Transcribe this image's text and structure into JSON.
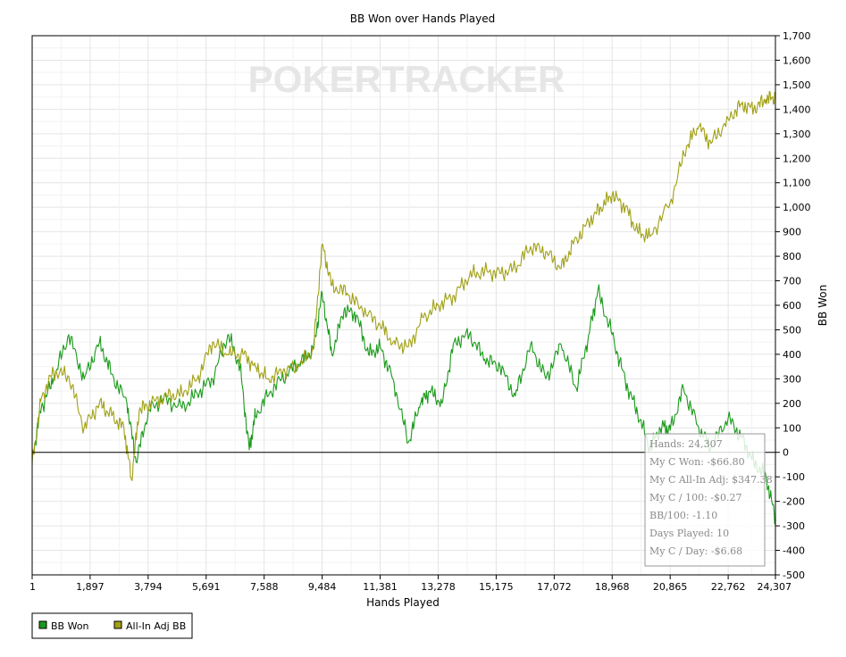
{
  "chart_data": {
    "type": "line",
    "title": "BB Won over Hands Played",
    "xlabel": "Hands Played",
    "ylabel": "BB Won",
    "xlim": [
      1,
      24307
    ],
    "ylim": [
      -500,
      1700
    ],
    "x_ticks": [
      "1",
      "1,897",
      "3,794",
      "5,691",
      "7,588",
      "9,484",
      "11,381",
      "13,278",
      "15,175",
      "17,072",
      "18,968",
      "20,865",
      "22,762",
      "24,307"
    ],
    "y_ticks": [
      "-500",
      "-400",
      "-300",
      "-200",
      "-100",
      "0",
      "100",
      "200",
      "300",
      "400",
      "500",
      "600",
      "700",
      "800",
      "900",
      "1,000",
      "1,100",
      "1,200",
      "1,300",
      "1,400",
      "1,500",
      "1,600",
      "1,700"
    ],
    "grid": true,
    "legend_position": "bottom-left",
    "watermark": "POKERTRACKER",
    "series": [
      {
        "name": "BB Won",
        "color": "#1a9a1a",
        "x": [
          1,
          300,
          700,
          1200,
          1700,
          2200,
          2600,
          3100,
          3400,
          3800,
          4300,
          4900,
          5400,
          5900,
          6400,
          6800,
          7100,
          7300,
          7800,
          8300,
          8800,
          9200,
          9484,
          9800,
          10200,
          10600,
          11000,
          11381,
          11800,
          12300,
          12700,
          13000,
          13400,
          13800,
          14300,
          14800,
          15300,
          15800,
          16300,
          16800,
          17300,
          17800,
          18200,
          18500,
          18968,
          19400,
          19800,
          20200,
          20600,
          20865,
          21300,
          21800,
          22200,
          22762,
          23200,
          23600,
          24000,
          24307
        ],
        "y": [
          -20,
          180,
          300,
          480,
          300,
          450,
          320,
          200,
          -40,
          170,
          220,
          180,
          240,
          300,
          480,
          350,
          10,
          150,
          250,
          320,
          370,
          420,
          650,
          400,
          580,
          560,
          400,
          430,
          300,
          40,
          200,
          250,
          200,
          450,
          480,
          380,
          350,
          230,
          440,
          300,
          440,
          260,
          480,
          660,
          480,
          290,
          160,
          20,
          110,
          90,
          260,
          100,
          20,
          140,
          60,
          -40,
          -100,
          -270
        ]
      },
      {
        "name": "All-In Adj BB",
        "color": "#a0a015",
        "x": [
          1,
          300,
          700,
          1200,
          1700,
          2200,
          2600,
          3000,
          3250,
          3500,
          3900,
          4400,
          4900,
          5400,
          5900,
          6400,
          6900,
          7300,
          7700,
          8200,
          8700,
          9200,
          9484,
          9800,
          10300,
          10800,
          11381,
          11800,
          12300,
          12800,
          13300,
          13800,
          14300,
          14800,
          15300,
          15800,
          16300,
          16800,
          17300,
          17700,
          18200,
          18600,
          18968,
          19400,
          19800,
          20200,
          20865,
          21400,
          21800,
          22200,
          22762,
          23200,
          23600,
          24000,
          24307
        ],
        "y": [
          -50,
          220,
          330,
          310,
          100,
          200,
          150,
          100,
          -110,
          170,
          200,
          230,
          240,
          300,
          450,
          400,
          400,
          350,
          300,
          330,
          350,
          420,
          850,
          680,
          650,
          580,
          520,
          450,
          430,
          550,
          600,
          640,
          720,
          740,
          730,
          750,
          840,
          820,
          750,
          850,
          940,
          1000,
          1050,
          1000,
          900,
          880,
          1020,
          1250,
          1330,
          1260,
          1360,
          1420,
          1400,
          1440,
          1450
        ]
      }
    ],
    "tooltip": [
      "Hands: 24,307",
      "My C Won: -$66.80",
      "My C All-In Adj: $347.38",
      "My C / 100: -$0.27",
      "BB/100: -1.10",
      "Days Played: 10",
      "My C / Day: -$6.68"
    ]
  }
}
